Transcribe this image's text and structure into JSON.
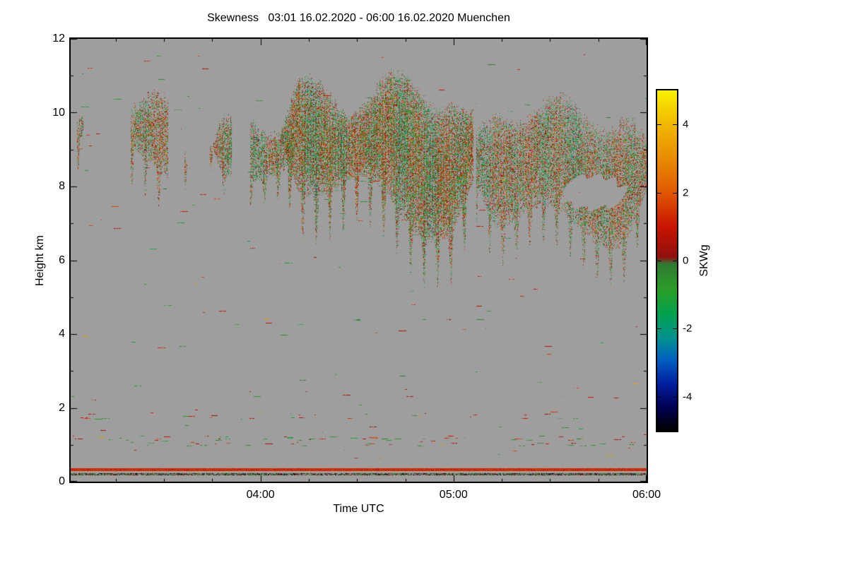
{
  "page": {
    "background": "#ffffff"
  },
  "chart_data": {
    "type": "heatmap",
    "title": "Skewness   03:01 16.02.2020 - 06:00 16.02.2020 Muenchen",
    "xlabel": "Time UTC",
    "ylabel": "Height km",
    "x_range": [
      "03:01",
      "06:00"
    ],
    "x_major_ticks": [
      {
        "time": "04:00",
        "label": "04:00"
      },
      {
        "time": "05:00",
        "label": "05:00"
      },
      {
        "time": "06:00",
        "label": "06:00"
      }
    ],
    "x_minor_tick_minutes": 15,
    "y_range": [
      0,
      12
    ],
    "y_major_ticks": [
      0,
      2,
      4,
      6,
      8,
      10,
      12
    ],
    "y_minor_tick_step": 1,
    "no_data_color": "#9e9e9e",
    "frame_color": "#000000",
    "colorbar": {
      "label": "SKWg",
      "range": [
        -5,
        5
      ],
      "ticks": [
        4,
        2,
        0,
        -2,
        -4
      ],
      "stops": [
        {
          "v": -5.0,
          "color": "#000000"
        },
        {
          "v": -4.3,
          "color": "#000050"
        },
        {
          "v": -3.6,
          "color": "#0020a0"
        },
        {
          "v": -2.9,
          "color": "#0060c0"
        },
        {
          "v": -2.3,
          "color": "#009090"
        },
        {
          "v": -1.6,
          "color": "#00a050"
        },
        {
          "v": -0.9,
          "color": "#28a028"
        },
        {
          "v": -0.1,
          "color": "#307830"
        },
        {
          "v": 0.1,
          "color": "#901010"
        },
        {
          "v": 1.0,
          "color": "#c81400"
        },
        {
          "v": 2.0,
          "color": "#e05800"
        },
        {
          "v": 3.0,
          "color": "#e88c00"
        },
        {
          "v": 4.0,
          "color": "#f0b800"
        },
        {
          "v": 5.0,
          "color": "#f8f000"
        }
      ]
    },
    "clouds": [
      {
        "name": "cirrus-patches-early",
        "t_start": "03:03",
        "t_end": "03:38",
        "h_top_start": 10.5,
        "h_top_end": 9.9,
        "h_bot_start": 8.7,
        "h_bot_end": 8.5,
        "fill": 0.5,
        "patchiness": 0.42,
        "wobble": 0.9,
        "holes": []
      },
      {
        "name": "cloud-band-left",
        "t_start": "03:41",
        "t_end": "04:14",
        "h_top_start": 9.5,
        "h_top_end": 9.8,
        "h_bot_start": 8.6,
        "h_bot_end": 8.2,
        "fill": 0.55,
        "patchiness": 0.1,
        "wobble": 0.6,
        "holes": []
      },
      {
        "name": "cloud-core",
        "t_start": "04:05",
        "t_end": "05:06",
        "h_top_start": 10.4,
        "h_top_end": 10.7,
        "h_bot_start": 8.6,
        "h_bot_end": 6.6,
        "fill": 0.72,
        "patchiness": 0.03,
        "wobble": 1.1,
        "holes": []
      },
      {
        "name": "cloud-right",
        "t_start": "05:07",
        "t_end": "06:00",
        "h_top_start": 10.2,
        "h_top_end": 9.9,
        "h_bot_start": 7.3,
        "h_bot_end": 6.6,
        "fill": 0.55,
        "patchiness": 0.13,
        "wobble": 0.9,
        "holes": [
          {
            "t_start": "05:33",
            "t_end": "05:53",
            "h_min": 7.4,
            "h_max": 8.3
          }
        ]
      }
    ],
    "surface_layers": [
      {
        "name": "surface-red-line",
        "h": 0.33,
        "thickness_km": 0.08,
        "v_min": 0.9,
        "v_max": 1.7,
        "density": 1.0,
        "dark_fraction": 0.0
      },
      {
        "name": "surface-dark-line",
        "h": 0.2,
        "thickness_km": 0.06,
        "v_min": -0.4,
        "v_max": 0.2,
        "density": 0.75,
        "dark_fraction": 0.25
      }
    ],
    "speckle_layers": [
      {
        "name": "aerosol-band-low",
        "h_min": 0.95,
        "h_max": 1.25,
        "density": 0.006
      },
      {
        "name": "aerosol-band-mid",
        "h_min": 1.7,
        "h_max": 1.9,
        "density": 0.003
      },
      {
        "name": "scattered-noise",
        "h_min": 0.45,
        "h_max": 11.6,
        "density": 0.0004
      }
    ]
  }
}
